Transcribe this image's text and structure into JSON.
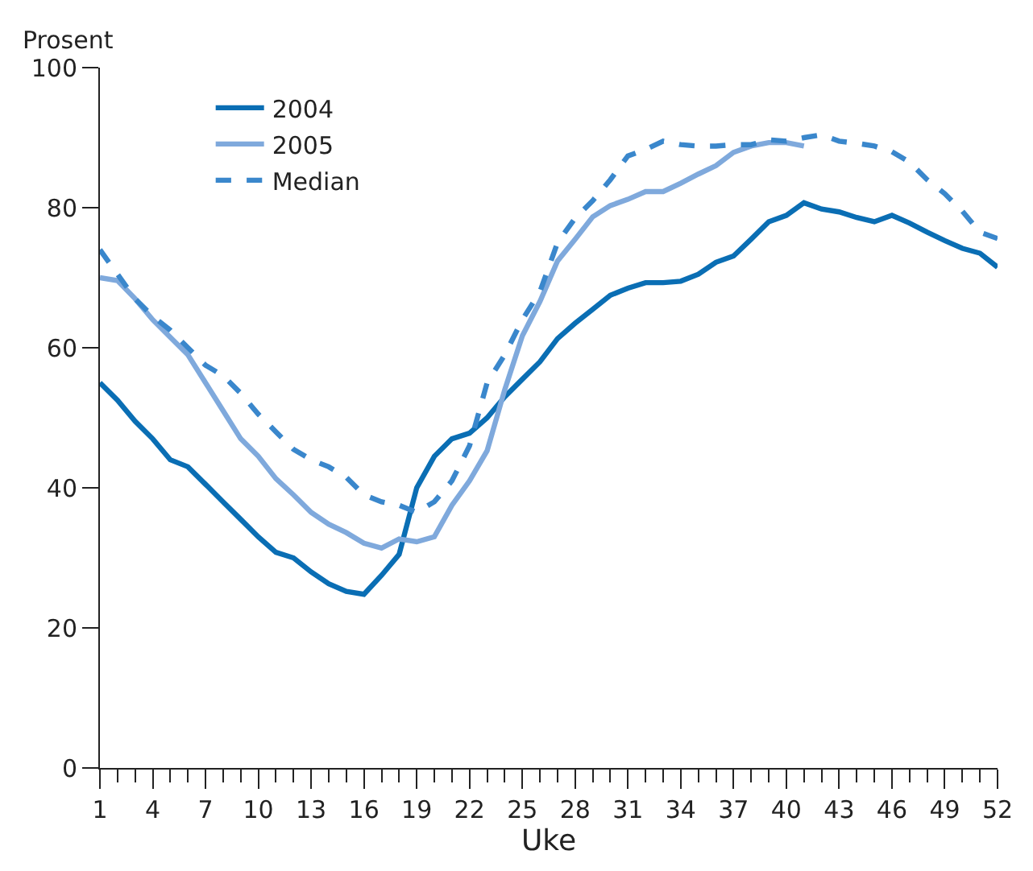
{
  "chart_data": {
    "type": "line",
    "xlabel": "Uke",
    "ylabel": "Prosent",
    "x": [
      1,
      2,
      3,
      4,
      5,
      6,
      7,
      8,
      9,
      10,
      11,
      12,
      13,
      14,
      15,
      16,
      17,
      18,
      19,
      20,
      21,
      22,
      23,
      24,
      25,
      26,
      27,
      28,
      29,
      30,
      31,
      32,
      33,
      34,
      35,
      36,
      37,
      38,
      39,
      40,
      41,
      42,
      43,
      44,
      45,
      46,
      47,
      48,
      49,
      50,
      51,
      52
    ],
    "series": [
      {
        "name": "2004",
        "color": "#0a6eb4",
        "line_style": "solid",
        "values": [
          55,
          52.5,
          49.5,
          47,
          44,
          43,
          40.5,
          38,
          35.5,
          33,
          30.8,
          30,
          28,
          26.3,
          25.2,
          24.8,
          27.5,
          30.5,
          40,
          44.5,
          47,
          47.8,
          50,
          53,
          55.5,
          58,
          61.3,
          63.5,
          65.5,
          67.5,
          68.5,
          69.3,
          69.3,
          69.5,
          70.5,
          72.2,
          73.1,
          75.5,
          78,
          78.9,
          80.7,
          79.8,
          79.4,
          78.6,
          78,
          78.9,
          77.8,
          76.5,
          75.3,
          74.2,
          73.5,
          71.5
        ]
      },
      {
        "name": "2005",
        "color": "#7fa9dc",
        "line_style": "solid",
        "values": [
          70,
          69.6,
          67,
          64,
          61.5,
          59,
          55,
          51,
          47,
          44.5,
          41.3,
          39,
          36.5,
          34.8,
          33.6,
          32.1,
          31.4,
          32.7,
          32.3,
          33,
          37.5,
          41,
          45.3,
          54,
          61.7,
          66.6,
          72.4,
          75.5,
          78.7,
          80.3,
          81.2,
          82.3,
          82.3,
          83.5,
          84.8,
          86,
          87.9,
          88.8,
          89.3,
          89.3,
          88.8,
          null,
          null,
          null,
          null,
          null,
          null,
          null,
          null,
          null,
          null,
          null
        ]
      },
      {
        "name": "Median",
        "color": "#3a87cc",
        "line_style": "dashed",
        "values": [
          74,
          70.5,
          67,
          64.5,
          62.5,
          60,
          57.5,
          56,
          53.5,
          50.5,
          48,
          45.5,
          44,
          43,
          41.5,
          39,
          38,
          37.5,
          36.5,
          38,
          41,
          46,
          55,
          59,
          64,
          68,
          75,
          78.5,
          81,
          84,
          87.4,
          88.3,
          89.5,
          89,
          88.8,
          88.8,
          89,
          89,
          89.7,
          89.5,
          90,
          90.4,
          89.5,
          89.2,
          88.8,
          88,
          86.5,
          84,
          82,
          79.5,
          76.5,
          75.6
        ]
      }
    ],
    "xlim": [
      1,
      52
    ],
    "xticks": [
      1,
      4,
      7,
      10,
      13,
      16,
      19,
      22,
      25,
      28,
      31,
      34,
      37,
      40,
      43,
      46,
      49,
      52
    ],
    "ylim": [
      0,
      100
    ],
    "yticks": [
      0,
      20,
      40,
      60,
      80,
      100
    ],
    "legend": "top left",
    "marker": "none"
  }
}
